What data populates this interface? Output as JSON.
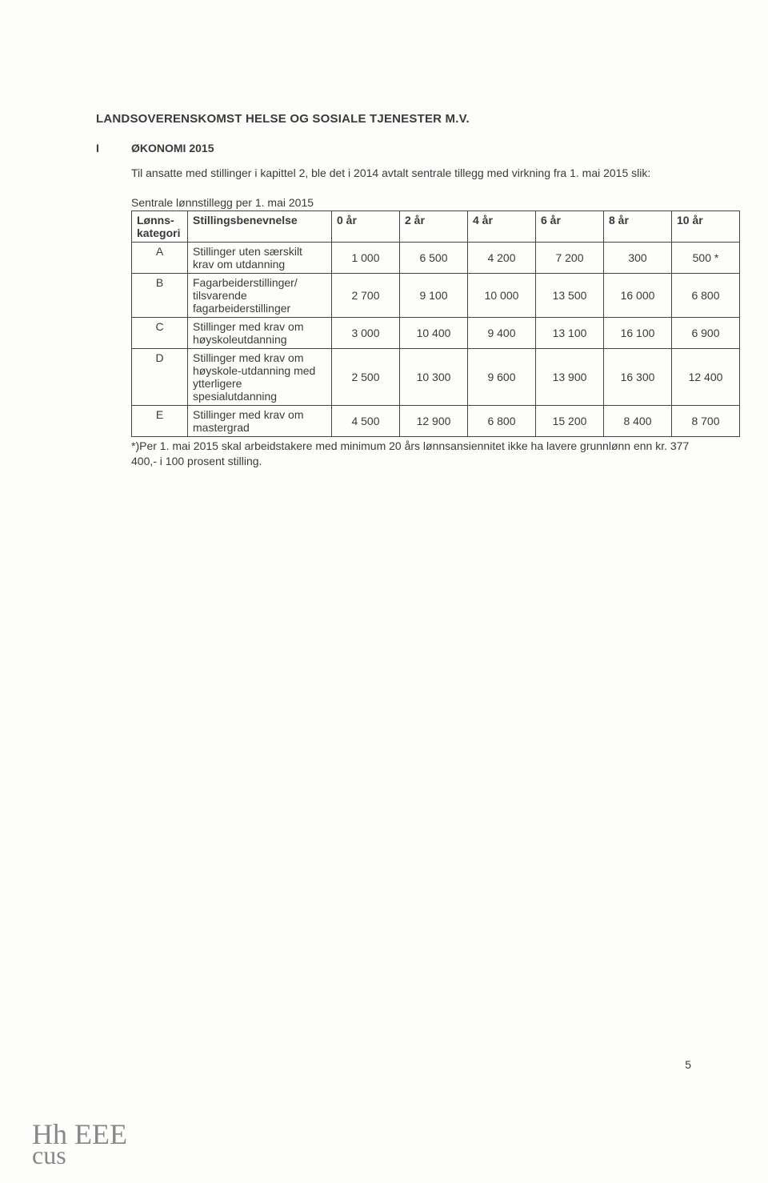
{
  "title": "LANDSOVERENSKOMST HELSE OG SOSIALE TJENESTER M.V.",
  "section": {
    "num": "I",
    "head": "ØKONOMI 2015"
  },
  "intro": "Til ansatte med stillinger i kapittel 2, ble det i 2014 avtalt sentrale tillegg med virkning fra 1. mai 2015 slik:",
  "table_caption": "Sentrale lønnstillegg per 1. mai 2015",
  "table": {
    "columns": [
      {
        "label": "Lønns-kategori",
        "class": "col-cat"
      },
      {
        "label": "Stillingsbenevnelse",
        "class": "col-desc"
      },
      {
        "label": "0 år",
        "class": "col-val center"
      },
      {
        "label": "2 år",
        "class": "col-val center"
      },
      {
        "label": "4 år",
        "class": "col-val center"
      },
      {
        "label": "6 år",
        "class": "col-val center"
      },
      {
        "label": "8 år",
        "class": "col-val center"
      },
      {
        "label": "10 år",
        "class": "col-val center"
      }
    ],
    "rows": [
      {
        "cat": "A",
        "desc": "Stillinger uten særskilt krav om utdanning",
        "v": [
          "1 000",
          "6 500",
          "4 200",
          "7 200",
          "300",
          "500 *"
        ]
      },
      {
        "cat": "B",
        "desc": "Fagarbeiderstillinger/ tilsvarende fagarbeiderstillinger",
        "v": [
          "2 700",
          "9 100",
          "10 000",
          "13 500",
          "16 000",
          "6 800"
        ]
      },
      {
        "cat": "C",
        "desc": "Stillinger med krav om høyskoleutdanning",
        "v": [
          "3 000",
          "10 400",
          "9 400",
          "13 100",
          "16 100",
          "6 900"
        ]
      },
      {
        "cat": "D",
        "desc": "Stillinger med krav om høyskole-utdanning med ytterligere spesialutdanning",
        "v": [
          "2 500",
          "10 300",
          "9 600",
          "13 900",
          "16 300",
          "12 400"
        ]
      },
      {
        "cat": "E",
        "desc": "Stillinger med krav om mastergrad",
        "v": [
          "4 500",
          "12 900",
          "6 800",
          "15 200",
          "8 400",
          "8 700"
        ]
      }
    ]
  },
  "footnote": "*)Per 1. mai 2015 skal arbeidstakere med minimum 20 års lønnsansiennitet ikke ha lavere grunnlønn enn kr. 377 400,- i 100 prosent stilling.",
  "page_number": "5",
  "signatures_line1": "Hh  EEE",
  "signatures_line2": "cus"
}
